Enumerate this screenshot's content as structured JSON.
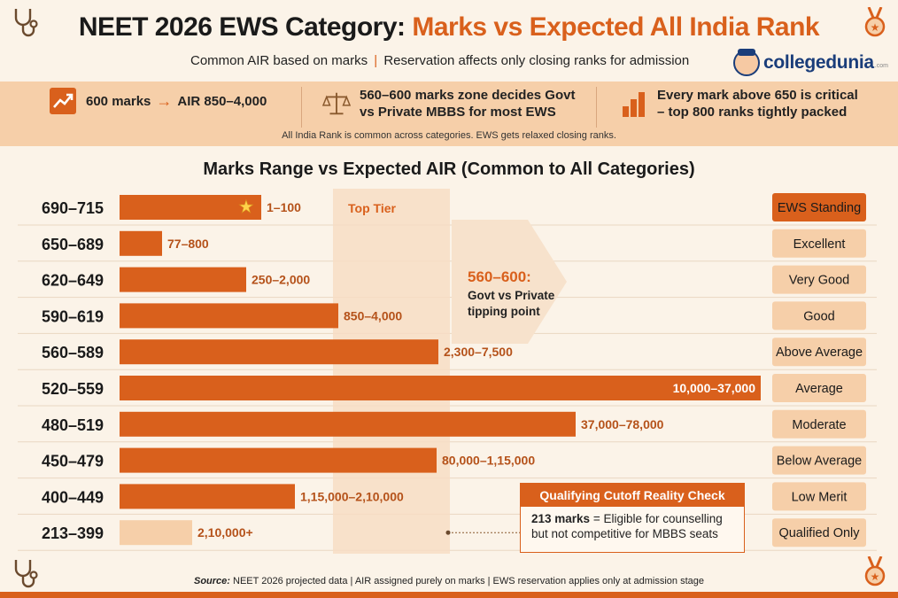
{
  "header": {
    "title_main": "NEET 2026 EWS Category:",
    "title_accent": "Marks vs Expected All India Rank",
    "subtitle_left": "Common AIR based on marks",
    "subtitle_sep": "|",
    "subtitle_right": "Reservation affects only closing ranks for admission",
    "logo_text": "collegedunia",
    "logo_tld": ".com"
  },
  "banner": {
    "item1": "600 marks",
    "item1_arrow": "→",
    "item1_b": "AIR 850–4,000",
    "item2_line1": "560–600 marks zone decides Govt",
    "item2_line2": "vs Private MBBS for most EWS",
    "item3_line1": "Every mark above 650 is critical",
    "item3_line2": "– top 800 ranks tightly packed",
    "note": "All India Rank is common across categories. EWS gets relaxed closing ranks."
  },
  "colors": {
    "accent": "#d9601c",
    "bar": "#d9601c",
    "bar_light": "#f6cfa9",
    "band": "#f7ddc4",
    "background": "#fbf3e8"
  },
  "chart_data": {
    "type": "bar",
    "orientation": "horizontal",
    "title": "Marks Range vs Expected AIR (Common to All Categories)",
    "categories": [
      "690–715",
      "650–689",
      "620–649",
      "590–619",
      "560–589",
      "520–559",
      "480–519",
      "450–479",
      "400–449",
      "213–399"
    ],
    "air_labels": [
      "1–100",
      "77–800",
      "250–2,000",
      "850–4,000",
      "2,300–7,500",
      "10,000–37,000",
      "37,000–78,000",
      "80,000–1,15,000",
      "1,15,000–2,10,000",
      "2,10,000+"
    ],
    "values": [
      160,
      48,
      143,
      247,
      360,
      724,
      515,
      358,
      198,
      82
    ],
    "value_note": "relative bar length (approximate, unscaled)",
    "standing": [
      "EWS Standing",
      "Excellent",
      "Very Good",
      "Good",
      "Above Average",
      "Average",
      "Moderate",
      "Below Average",
      "Low Merit",
      "Qualified Only"
    ],
    "highlight_band": "Top Tier",
    "annotation_title": "560–600:",
    "annotation_line1": "Govt vs Private",
    "annotation_line2": "tipping point"
  },
  "callout": {
    "title": "Qualifying Cutoff Reality Check",
    "bold": "213 marks",
    "text1": "= Eligible for counselling",
    "text2": "but not competitive for MBBS seats"
  },
  "footer": {
    "source_label": "Source:",
    "source_text": "NEET 2026 projected data | AIR assigned purely on marks | EWS reservation applies only at admission stage"
  }
}
